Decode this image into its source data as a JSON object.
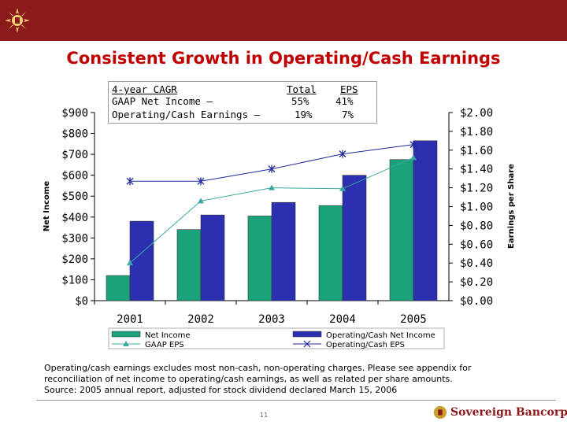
{
  "title": "Consistent Growth in Operating/Cash Earnings",
  "cagr_box": {
    "heading": "4-year CAGR",
    "col_total": "Total",
    "col_eps": "EPS",
    "rows": [
      {
        "label": "GAAP Net Income –",
        "total": "55%",
        "eps": "41%"
      },
      {
        "label": "Operating/Cash Earnings –",
        "total": "19%",
        "eps": "7%"
      }
    ]
  },
  "chart_data": {
    "type": "bar",
    "categories": [
      "2001",
      "2002",
      "2003",
      "2004",
      "2005"
    ],
    "ylabel": "Net Income",
    "y2label": "Earnings per Share",
    "ylim": [
      0,
      900
    ],
    "y2lim": [
      0,
      2.0
    ],
    "yticks": [
      "$0",
      "$100",
      "$200",
      "$300",
      "$400",
      "$500",
      "$600",
      "$700",
      "$800",
      "$900"
    ],
    "y2ticks": [
      "$0.00",
      "$0.20",
      "$0.40",
      "$0.60",
      "$0.80",
      "$1.00",
      "$1.20",
      "$1.40",
      "$1.60",
      "$1.80",
      "$2.00"
    ],
    "series": [
      {
        "name": "Net Income",
        "kind": "bar",
        "axis": "left",
        "color": "#1aa37a",
        "values": [
          120,
          340,
          405,
          455,
          675
        ]
      },
      {
        "name": "Operating/Cash Net Income",
        "kind": "bar",
        "axis": "left",
        "color": "#2b2fb0",
        "values": [
          380,
          410,
          470,
          600,
          765
        ]
      },
      {
        "name": "GAAP EPS",
        "kind": "line",
        "axis": "right",
        "marker": "triangle",
        "color": "#3aa8a0",
        "values": [
          0.4,
          1.06,
          1.2,
          1.19,
          1.52
        ]
      },
      {
        "name": "Operating/Cash EPS",
        "kind": "line",
        "axis": "right",
        "marker": "star",
        "color": "#1f2a9a",
        "values": [
          1.27,
          1.27,
          1.4,
          1.56,
          1.66
        ]
      }
    ],
    "legend_position": "bottom"
  },
  "footnote": {
    "line1": "Operating/cash earnings excludes most non-cash, non-operating charges.  Please see appendix for",
    "line2": "reconciliation of net income to operating/cash earnings, as well as related per share amounts.",
    "line3": "Source: 2005 annual report, adjusted for stock dividend declared March 15, 2006"
  },
  "page_number": "11",
  "brand_name": "Sovereign Bancorp"
}
